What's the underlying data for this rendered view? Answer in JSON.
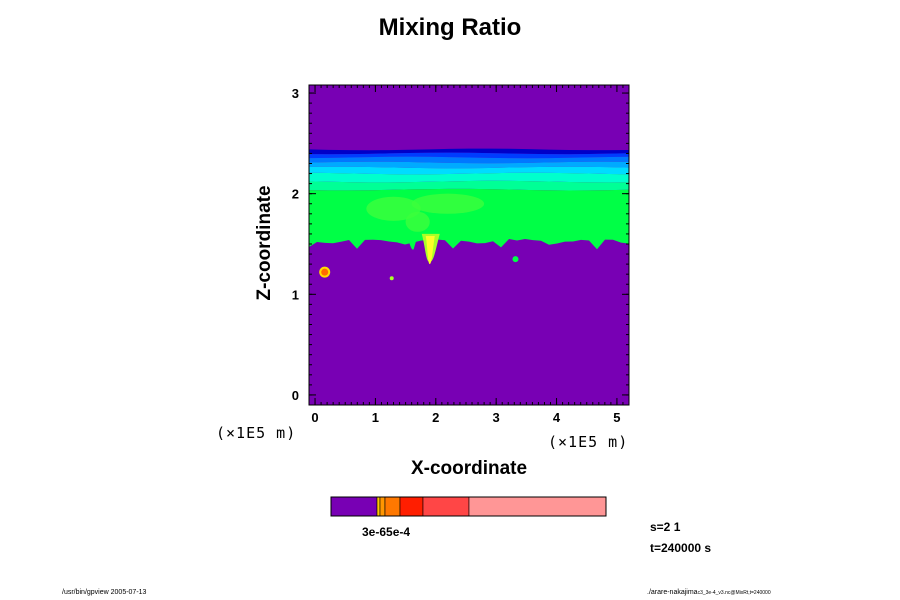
{
  "chart_data": {
    "type": "heatmap",
    "title": "Mixing Ratio",
    "xlabel": "X-coordinate",
    "ylabel": "Z-coordinate",
    "x_unit": "(×1E5 m)",
    "y_unit": "(×1E5 m)",
    "xlim": [
      -0.1,
      5.2
    ],
    "ylim": [
      -0.1,
      3.08
    ],
    "x_ticks": [
      0,
      1,
      2,
      3,
      4,
      5
    ],
    "y_ticks": [
      0,
      1,
      2,
      3
    ],
    "layers": [
      {
        "z_bottom": 2.4,
        "z_top": 2.44,
        "color": "#0000c8"
      },
      {
        "z_bottom": 2.36,
        "z_top": 2.4,
        "color": "#003cff"
      },
      {
        "z_bottom": 2.31,
        "z_top": 2.36,
        "color": "#0078ff"
      },
      {
        "z_bottom": 2.26,
        "z_top": 2.31,
        "color": "#00aaff"
      },
      {
        "z_bottom": 2.2,
        "z_top": 2.26,
        "color": "#00dcff"
      },
      {
        "z_bottom": 2.12,
        "z_top": 2.2,
        "color": "#00ffcc"
      },
      {
        "z_bottom": 2.04,
        "z_top": 2.12,
        "color": "#00ff96"
      },
      {
        "z_bottom": 1.55,
        "z_top": 2.04,
        "color": "#00ff46"
      }
    ],
    "background_color": "#7800b4",
    "features": [
      {
        "label": "plume",
        "x": 1.9,
        "z": 1.32,
        "color": "#ffff28"
      },
      {
        "label": "blob",
        "x": 0.16,
        "z": 1.22,
        "color": "#ff6a00"
      }
    ],
    "colorbar": {
      "colors": [
        "#7800b4",
        "#ffc800",
        "#ff9600",
        "#ff7800",
        "#ff1e00",
        "#ff4646",
        "#ff9696"
      ],
      "tick_label": "3e-65e-4"
    }
  },
  "info": {
    "s": "s=2 1",
    "t": "t=240000 s"
  },
  "footer": {
    "left": "/usr/bin/gpview 2005-07-13",
    "right": "./arare-nakajima",
    "right_small": "c3_3e-4_v3.nc@MixRt,t=240000"
  }
}
